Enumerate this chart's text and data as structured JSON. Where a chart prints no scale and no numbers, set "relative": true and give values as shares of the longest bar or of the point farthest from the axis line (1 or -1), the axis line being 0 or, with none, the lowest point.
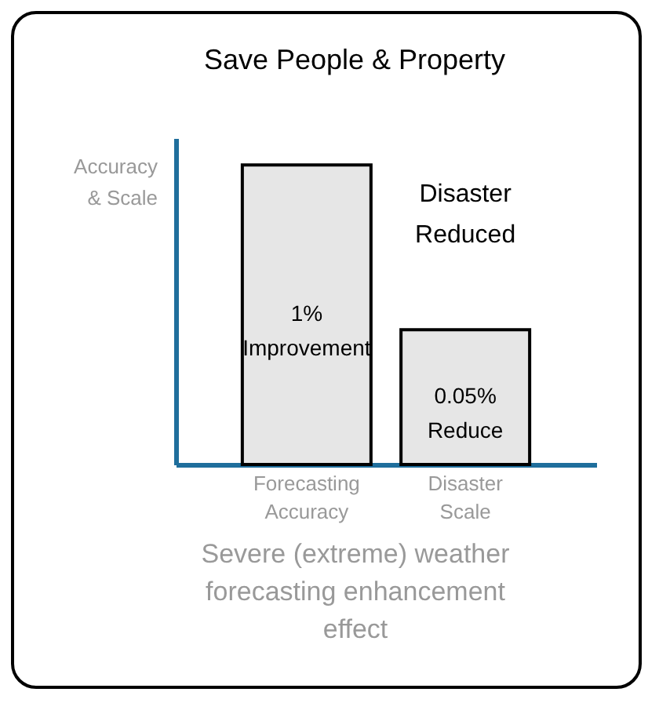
{
  "chart_data": {
    "type": "bar",
    "title": "Save People & Property",
    "ylabel": "Accuracy & Scale",
    "xlabel": "Severe (extreme) weather forecasting enhancement effect",
    "categories": [
      "Forecasting Accuracy",
      "Disaster Scale"
    ],
    "values": [
      1,
      0.45
    ],
    "color": "#e6e6e6",
    "relative": true,
    "annotations": [
      "1% Improvement",
      "0.05% Reduce",
      "Disaster Reduced"
    ]
  }
}
